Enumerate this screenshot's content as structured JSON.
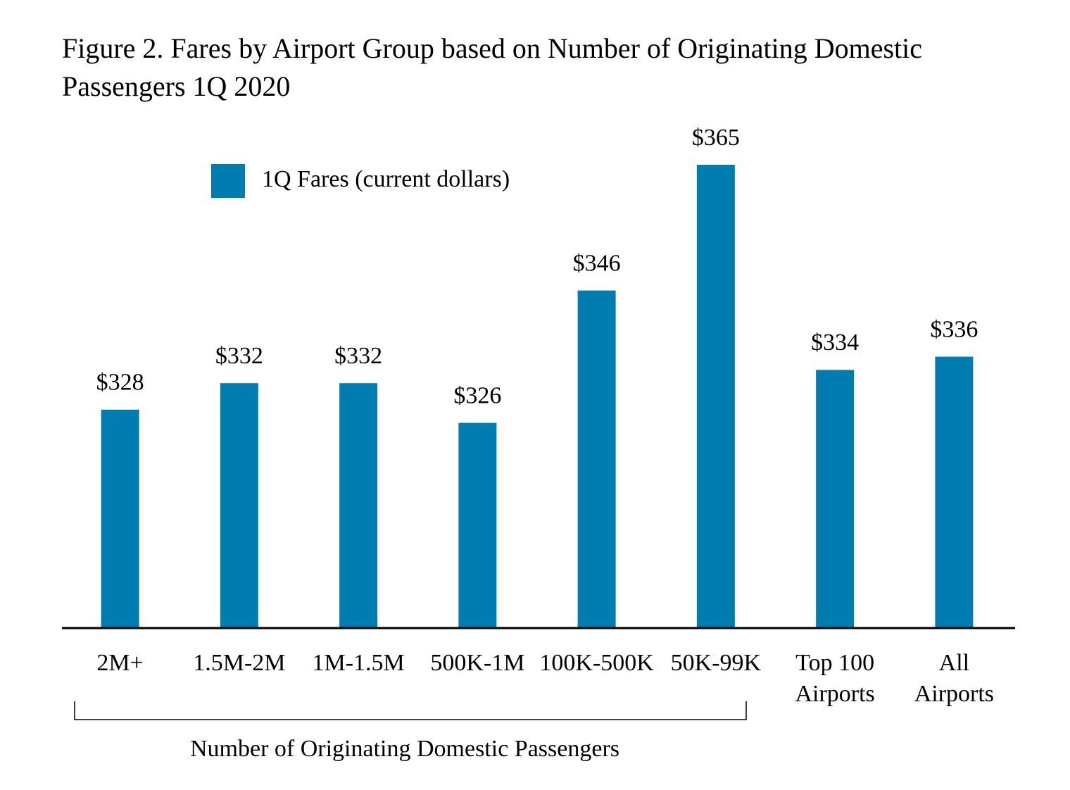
{
  "chart_data": {
    "type": "bar",
    "title": "Figure 2. Fares by Airport Group based on Number of Originating Domestic Passengers 1Q 2020",
    "categories": [
      "2M+",
      "1.5M-2M",
      "1M-1.5M",
      "500K-1M",
      "100K-500K",
      "50K-99K",
      "Top 100 Airports",
      "All Airports"
    ],
    "series": [
      {
        "name": "1Q Fares (current dollars)",
        "color": "#007db0",
        "values": [
          328,
          332,
          332,
          326,
          346,
          365,
          334,
          336
        ],
        "value_labels": [
          "$328",
          "$332",
          "$332",
          "$326",
          "$346",
          "$365",
          "$334",
          "$336"
        ]
      }
    ],
    "x_label": "Number of Originating Domestic Passengers",
    "ylim": [
      295,
      370
    ],
    "legend": "top-left"
  }
}
